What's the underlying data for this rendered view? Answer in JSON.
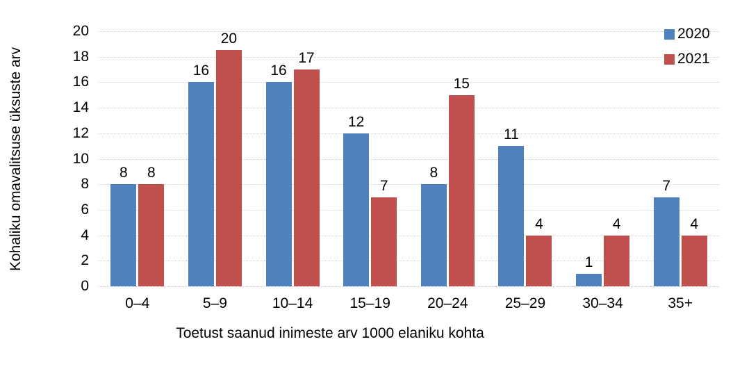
{
  "chart_data": {
    "type": "bar",
    "title": "",
    "xlabel": "Toetust saanud inimeste arv 1000 elaniku kohta",
    "ylabel": "Kohaliku omavalitsuse üksuste arv",
    "categories": [
      "0–4",
      "5–9",
      "10–14",
      "15–19",
      "20–24",
      "25–29",
      "30–34",
      "35+"
    ],
    "series": [
      {
        "name": "2020",
        "color": "#4F81BD",
        "values": [
          8,
          16,
          16,
          12,
          8,
          11,
          1,
          7
        ]
      },
      {
        "name": "2021",
        "color": "#C0504D",
        "values": [
          8,
          20,
          17,
          7,
          15,
          4,
          4,
          4
        ]
      }
    ],
    "ylim": [
      0,
      20
    ],
    "ytick_step": 2,
    "yticks": [
      0,
      2,
      4,
      6,
      8,
      10,
      12,
      14,
      16,
      18,
      20
    ],
    "grid": "horizontal-dotted",
    "legend_position": "top-right",
    "data_labels": true
  }
}
